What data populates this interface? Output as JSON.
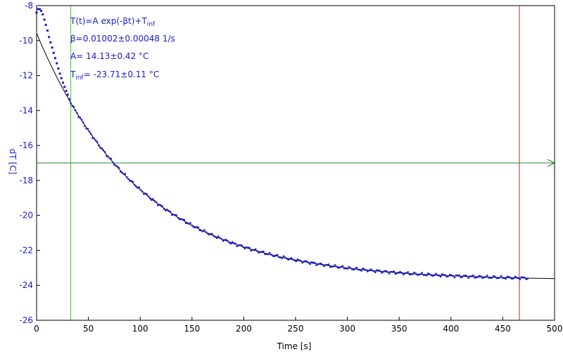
{
  "chart_data": {
    "type": "scatter",
    "title": "",
    "xlabel": "Time [s]",
    "ylabel": "dT [C]",
    "xlim": [
      0,
      500
    ],
    "ylim": [
      -26,
      -8
    ],
    "x_ticks": [
      0,
      50,
      100,
      150,
      200,
      250,
      300,
      350,
      400,
      450,
      500
    ],
    "y_ticks": [
      -26,
      -24,
      -22,
      -20,
      -18,
      -16,
      -14,
      -12,
      -10,
      -8
    ],
    "grid": false,
    "fit": {
      "model": "T(t)=A exp(-βt)+T_inf",
      "A": 14.13,
      "beta": 0.01002,
      "T_inf": -23.71,
      "x_range": [
        0,
        500
      ]
    },
    "measured": {
      "x_range": [
        0,
        475
      ],
      "step": 1.5,
      "start_values": [
        [
          0,
          -8.4
        ],
        [
          1.5,
          -8.2
        ],
        [
          3,
          -8.2
        ],
        [
          4.5,
          -8.3
        ],
        [
          6,
          -8.5
        ],
        [
          8,
          -8.9
        ],
        [
          10,
          -9.3
        ],
        [
          12,
          -9.8
        ],
        [
          15,
          -10.4
        ],
        [
          18,
          -11.0
        ],
        [
          22,
          -11.8
        ],
        [
          26,
          -12.5
        ],
        [
          30,
          -13.1
        ],
        [
          33,
          -13.6
        ]
      ],
      "color": "#1a1acc"
    },
    "markers": {
      "green_vertical_x": 33,
      "red_vertical_x": 466,
      "green_horizontal_y": -17
    },
    "colors": {
      "data": "#1a1acc",
      "fit": "#000000",
      "green_marker": "#33cc33",
      "red_marker": "#cc2222",
      "h_marker": "#228822",
      "axis_text": "#1a1acc"
    },
    "annotations": {
      "line1_main": "T(t)=A exp(-βt)+T",
      "line1_sub": "inf",
      "line2": "β=0.01002±0.00048 1/s",
      "line3": "A= 14.13±0.42 °C",
      "line4_pre": "T",
      "line4_sub": "inf",
      "line4_post": "= -23.71±0.11 °C"
    }
  }
}
